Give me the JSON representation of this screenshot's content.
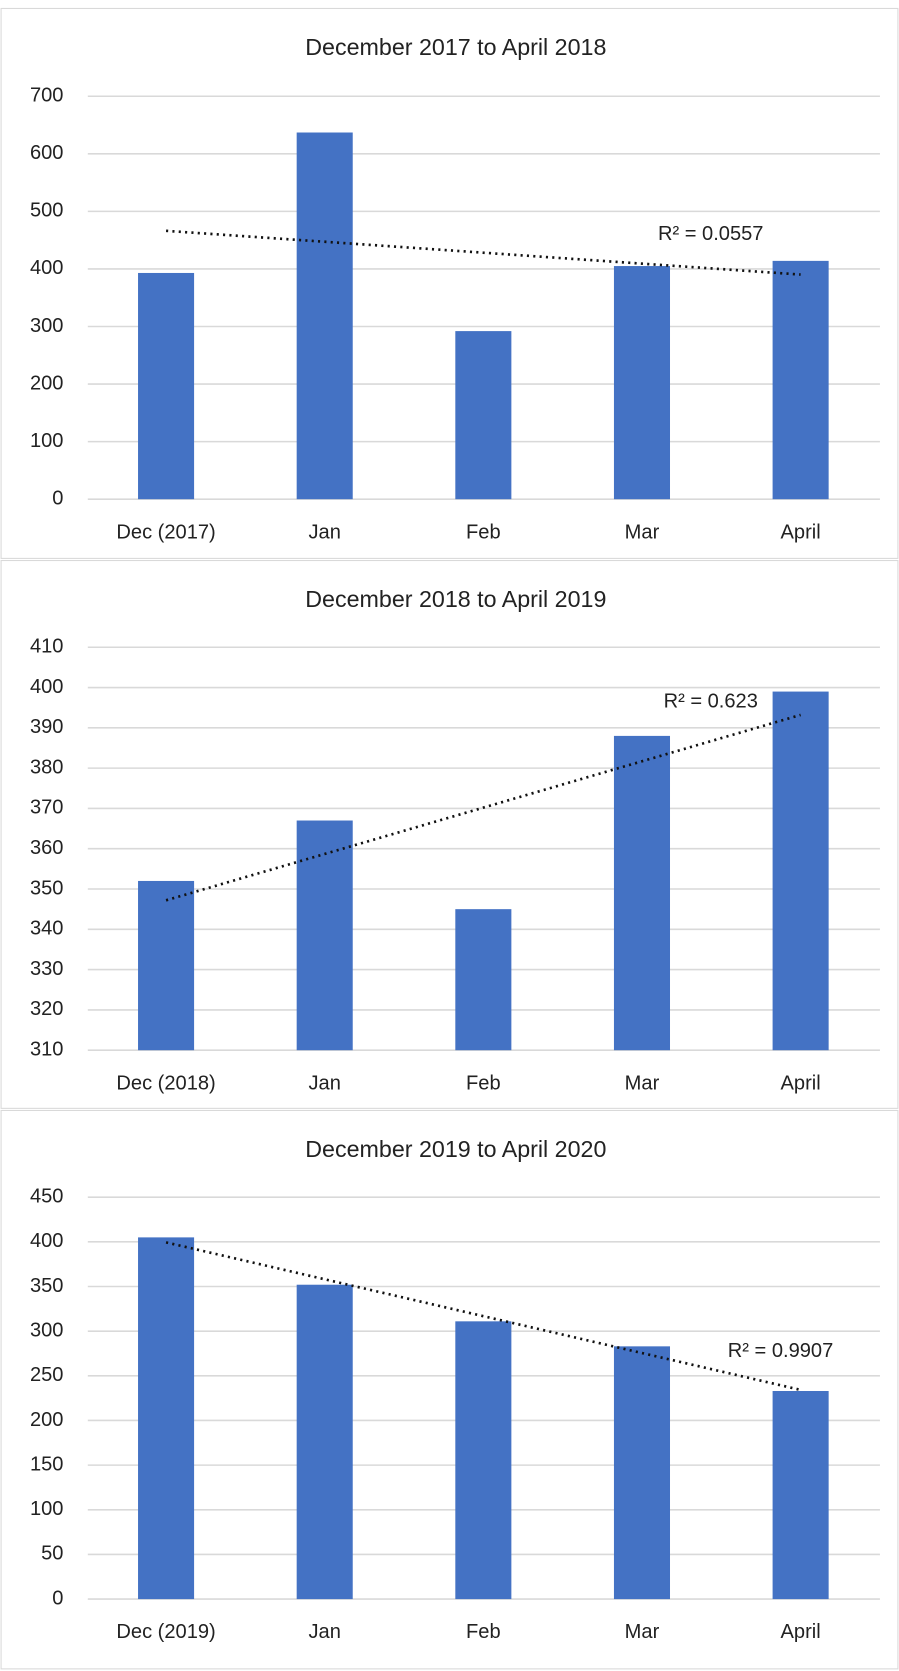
{
  "chart_data": [
    {
      "type": "bar",
      "title": "December 2017 to April 2018",
      "categories": [
        "Dec (2017)",
        "Jan",
        "Feb",
        "Mar",
        "April"
      ],
      "values": [
        393,
        637,
        292,
        405,
        414
      ],
      "color": "#4472c4",
      "ylim": [
        0,
        700
      ],
      "yticks": [
        0,
        100,
        200,
        300,
        400,
        500,
        600,
        700
      ],
      "grid": true,
      "trendline": "linear",
      "trendline_label": "R² = 0.0557"
    },
    {
      "type": "bar",
      "title": "December 2018 to April 2019",
      "categories": [
        "Dec (2018)",
        "Jan",
        "Feb",
        "Mar",
        "April"
      ],
      "values": [
        352,
        367,
        345,
        388,
        399
      ],
      "color": "#4472c4",
      "ylim": [
        310,
        410
      ],
      "yticks": [
        310,
        320,
        330,
        340,
        350,
        360,
        370,
        380,
        390,
        400,
        410
      ],
      "grid": true,
      "trendline": "linear",
      "trendline_label": "R² = 0.623"
    },
    {
      "type": "bar",
      "title": "December 2019 to April 2020",
      "categories": [
        "Dec (2019)",
        "Jan",
        "Feb",
        "Mar",
        "April"
      ],
      "values": [
        405,
        352,
        311,
        283,
        233
      ],
      "color": "#4472c4",
      "ylim": [
        0,
        450
      ],
      "yticks": [
        0,
        50,
        100,
        150,
        200,
        250,
        300,
        350,
        400,
        450
      ],
      "grid": true,
      "trendline": "linear",
      "trendline_label": "R² = 0.9907"
    }
  ]
}
